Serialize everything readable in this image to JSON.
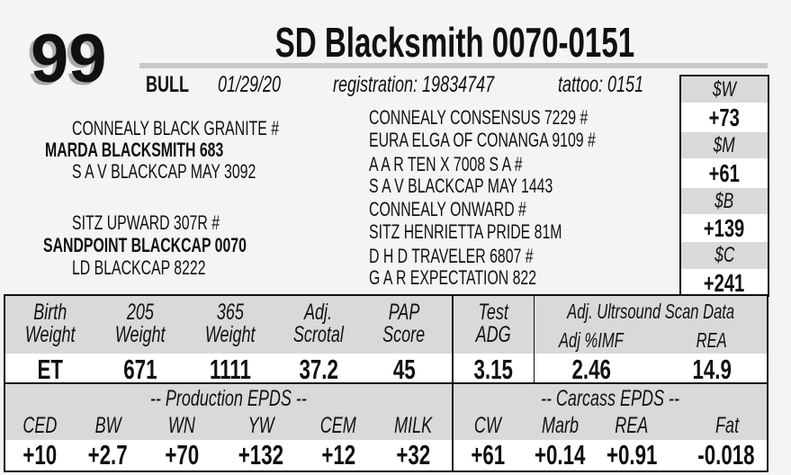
{
  "lot": "99",
  "title": "SD Blacksmith 0070-0151",
  "meta": {
    "sex": "BULL",
    "birth_date": "01/29/20",
    "registration": "registration:  19834747",
    "tattoo": "tattoo: 0151"
  },
  "pedigree": {
    "sire_sire": "CONNEALY BLACK GRANITE #",
    "sire": "MARDA BLACKSMITH 683",
    "sire_dam": "S A V BLACKCAP MAY 3092",
    "dam_sire": "SITZ UPWARD 307R #",
    "dam": "SANDPOINT BLACKCAP 0070",
    "dam_dam": "LD BLACKCAP 8222",
    "ancestors": [
      "CONNEALY CONSENSUS 7229 #",
      "EURA ELGA OF CONANGA 9109 #",
      "A A R TEN X 7008 S A #",
      "S A V BLACKCAP MAY 1443",
      "CONNEALY ONWARD #",
      "SITZ HENRIETTA PRIDE 81M",
      "D H D TRAVELER 6807 #",
      "G A R EXPECTATION 822"
    ]
  },
  "indexes": [
    {
      "label": "$W",
      "value": "+73"
    },
    {
      "label": "$M",
      "value": "+61"
    },
    {
      "label": "$B",
      "value": "+139"
    },
    {
      "label": "$C",
      "value": "+241"
    }
  ],
  "performance": {
    "headers": [
      [
        "Birth",
        "Weight"
      ],
      [
        "205",
        "Weight"
      ],
      [
        "365",
        "Weight"
      ],
      [
        "Adj.",
        "Scrotal"
      ],
      [
        "PAP",
        "Score"
      ],
      [
        "Test",
        "ADG"
      ]
    ],
    "values": [
      "ET",
      "671",
      "1111",
      "37.2",
      "45",
      "3.15"
    ],
    "ultrasound_title": "Adj. Ultrsound Scan Data",
    "ultrasound_headers": [
      "Adj %IMF",
      "REA"
    ],
    "ultrasound_values": [
      "2.46",
      "14.9"
    ]
  },
  "production": {
    "title": "-- Production EPDS --",
    "labels": [
      "CED",
      "BW",
      "WN",
      "YW",
      "CEM",
      "MILK"
    ],
    "values": [
      "+10",
      "+2.7",
      "+70",
      "+132",
      "+12",
      "+32"
    ]
  },
  "carcass": {
    "title": "-- Carcass EPDS --",
    "labels": [
      "CW",
      "Marb",
      "REA",
      "Fat"
    ],
    "values": [
      "+61",
      "+0.14",
      "+0.91",
      "-0.018"
    ]
  }
}
